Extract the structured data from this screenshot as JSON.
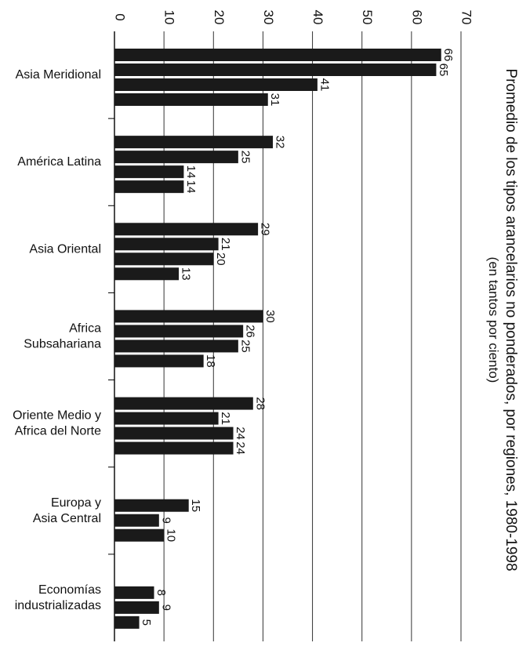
{
  "chart_data": {
    "type": "bar",
    "orientation": "horizontal",
    "title": "Promedio de los tipos arancelarios no ponderados, por regiones, 1980-1998",
    "subtitle": "(en tantos por ciento)",
    "axis_ticks": [
      "0",
      "10",
      "20",
      "30",
      "40",
      "50",
      "60",
      "70"
    ],
    "xlim": [
      0,
      70
    ],
    "grid": true,
    "colors": {
      "bar": "#1a1a1a",
      "grid": "#000000",
      "text": "#111111"
    },
    "categories": [
      {
        "label_lines": [
          "Asia Meridional"
        ],
        "values": [
          66,
          65,
          41,
          31
        ],
        "value_labels": [
          "66",
          "65",
          "41",
          "31"
        ]
      },
      {
        "label_lines": [
          "América Latina"
        ],
        "values": [
          32,
          25,
          14,
          14
        ],
        "value_labels": [
          "32",
          "25",
          "14",
          "14"
        ]
      },
      {
        "label_lines": [
          "Asia Oriental"
        ],
        "values": [
          29,
          21,
          20,
          13
        ],
        "value_labels": [
          "29",
          "21",
          "20",
          "13"
        ]
      },
      {
        "label_lines": [
          "Africa",
          "Subsahariana"
        ],
        "values": [
          30,
          26,
          25,
          18
        ],
        "value_labels": [
          "30",
          "26",
          "25",
          "18"
        ]
      },
      {
        "label_lines": [
          "Oriente Medio y",
          "Africa del Norte"
        ],
        "values": [
          28,
          21,
          24,
          24
        ],
        "value_labels": [
          "28",
          "21",
          "24",
          "24"
        ]
      },
      {
        "label_lines": [
          "Europa y",
          "Asia Central"
        ],
        "values": [
          null,
          15,
          9,
          10
        ],
        "value_labels": [
          "",
          "15",
          "9",
          "10"
        ]
      },
      {
        "label_lines": [
          "Economías",
          "industrializadas"
        ],
        "values": [
          null,
          8,
          9,
          5
        ],
        "value_labels": [
          "",
          "8",
          "9",
          "5"
        ]
      }
    ]
  }
}
